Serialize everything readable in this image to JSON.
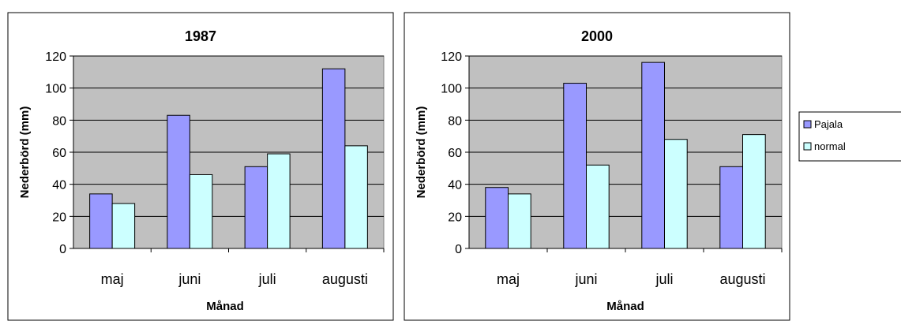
{
  "colors": {
    "pajala": "#9999ff",
    "normal": "#ccffff",
    "plot_bg": "#c0c0c0",
    "stroke": "#000000"
  },
  "legend": {
    "entries": [
      "Pajala",
      "normal"
    ],
    "placement": "right"
  },
  "chart_data": [
    {
      "type": "bar",
      "title": "1987",
      "xlabel": "Månad",
      "ylabel": "Nederbörd (mm)",
      "categories": [
        "maj",
        "juni",
        "juli",
        "augusti"
      ],
      "ylim": [
        0,
        120
      ],
      "yticks": [
        0,
        20,
        40,
        60,
        80,
        100,
        120
      ],
      "grid": true,
      "series": [
        {
          "name": "Pajala",
          "values": [
            34,
            83,
            51,
            112
          ]
        },
        {
          "name": "normal",
          "values": [
            28,
            46,
            59,
            64
          ]
        }
      ]
    },
    {
      "type": "bar",
      "title": "2000",
      "xlabel": "Månad",
      "ylabel": "Nederbörd (mm)",
      "categories": [
        "maj",
        "juni",
        "juli",
        "augusti"
      ],
      "ylim": [
        0,
        120
      ],
      "yticks": [
        0,
        20,
        40,
        60,
        80,
        100,
        120
      ],
      "grid": true,
      "series": [
        {
          "name": "Pajala",
          "values": [
            38,
            103,
            116,
            51
          ]
        },
        {
          "name": "normal",
          "values": [
            34,
            52,
            68,
            71
          ]
        }
      ]
    }
  ]
}
